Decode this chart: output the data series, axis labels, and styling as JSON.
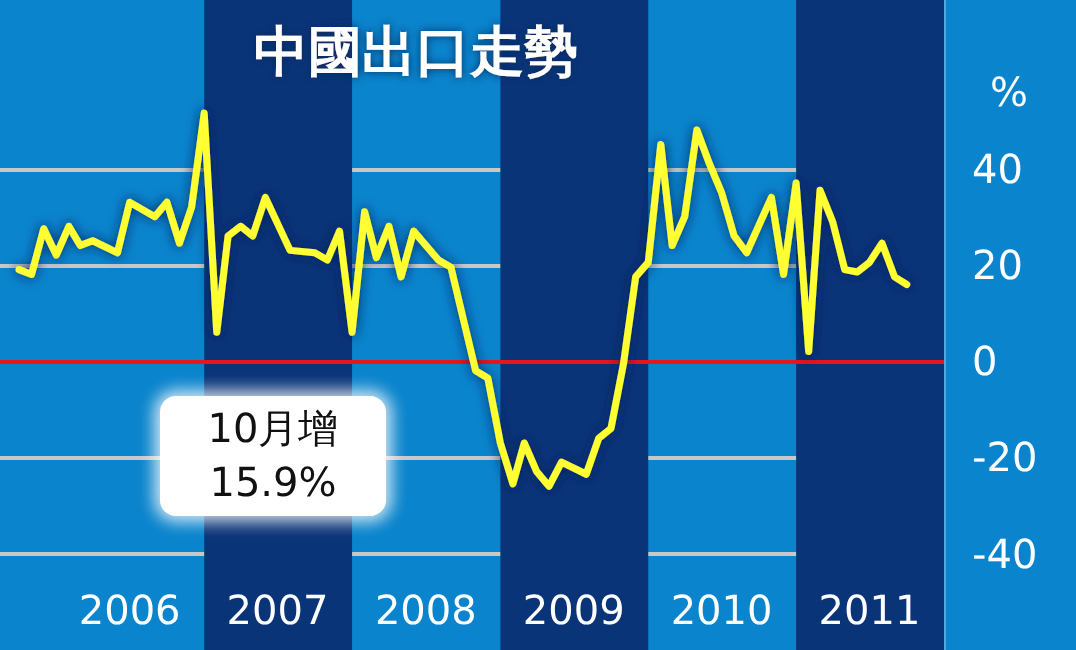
{
  "chart_data": {
    "type": "line",
    "title": "中國出口走勢",
    "ylabel": "%",
    "annotations": [
      "10月增\n15.9%"
    ],
    "series": [
      {
        "color": "#ffff33",
        "x": [
          "2005-10",
          "2005-11",
          "2005-12",
          "2006-01",
          "2006-02",
          "2006-03",
          "2006-04",
          "2006-06",
          "2006-07",
          "2006-09",
          "2006-10",
          "2006-11",
          "2006-12",
          "2007-01",
          "2007-02",
          "2007-03",
          "2007-04",
          "2007-05",
          "2007-06",
          "2007-08",
          "2007-10",
          "2007-11",
          "2007-12",
          "2008-01",
          "2008-02",
          "2008-03",
          "2008-04",
          "2008-05",
          "2008-06",
          "2008-08",
          "2008-09",
          "2008-11",
          "2008-12",
          "2009-01",
          "2009-02",
          "2009-03",
          "2009-04",
          "2009-05",
          "2009-06",
          "2009-08",
          "2009-09",
          "2009-10",
          "2009-11",
          "2009-12",
          "2010-01",
          "2010-02",
          "2010-03",
          "2010-04",
          "2010-05",
          "2010-06",
          "2010-07",
          "2010-08",
          "2010-09",
          "2010-11",
          "2010-12",
          "2011-01",
          "2011-02",
          "2011-03",
          "2011-04",
          "2011-05",
          "2011-06",
          "2011-07",
          "2011-08",
          "2011-09",
          "2011-10"
        ],
        "values": [
          19,
          18,
          27.5,
          22,
          28,
          24,
          25,
          22.5,
          33,
          30,
          33,
          24.5,
          32,
          51.5,
          6,
          26,
          28,
          26,
          34,
          23,
          22.5,
          21,
          27,
          6,
          31,
          21.5,
          28,
          17.5,
          27,
          21,
          19.5,
          -2,
          -3.5,
          -17,
          -25.5,
          -17,
          -23,
          -26,
          -21,
          -23.5,
          -16,
          -14,
          -0.5,
          17.5,
          20.5,
          45,
          24,
          30,
          48,
          41,
          35,
          26,
          22.5,
          34,
          18,
          37,
          2,
          35.5,
          29,
          19,
          18.5,
          20.5,
          24.5,
          17.5,
          15.9
        ]
      }
    ],
    "xlim": [
      "2005-08-15",
      "2012-01-01"
    ],
    "xticks": [
      {
        "value": "2006-07",
        "label": "2006"
      },
      {
        "value": "2007-07",
        "label": "2007"
      },
      {
        "value": "2008-07",
        "label": "2008"
      },
      {
        "value": "2009-07",
        "label": "2009"
      },
      {
        "value": "2010-07",
        "label": "2010"
      },
      {
        "value": "2011-07",
        "label": "2011"
      }
    ],
    "ylim": [
      -60,
      75
    ],
    "yticks": [
      40,
      20,
      0,
      -20,
      -40
    ],
    "grid": "y",
    "marker": "none",
    "line_style": "solid",
    "ref_lines": [
      {
        "axis": "y",
        "value": 0,
        "color": "#e8141e"
      }
    ],
    "bands": [
      {
        "axis": "x",
        "from": "2007-01",
        "to": "2008-01",
        "color": "#0a3478"
      },
      {
        "axis": "x",
        "from": "2009-01",
        "to": "2010-01",
        "color": "#0a3478"
      },
      {
        "axis": "x",
        "from": "2011-01",
        "to": "2012-01",
        "color": "#0a3478"
      }
    ]
  }
}
